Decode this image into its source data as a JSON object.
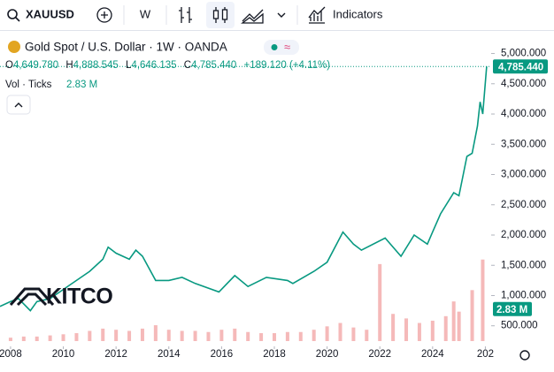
{
  "toolbar": {
    "symbol": "XAUUSD",
    "interval": "W",
    "indicators": "Indicators"
  },
  "legend": {
    "title": "Gold Spot / U.S. Dollar · 1W · OANDA",
    "open_key": "O",
    "open": "4,649.780",
    "high_key": "H",
    "high": "4,888.545",
    "low_key": "L",
    "low": "4,646.135",
    "close_key": "C",
    "close": "4,785.440",
    "change": "+189.120 (+4.11%)",
    "volume_title": "Vol · Ticks",
    "volume": "2.83 M"
  },
  "logo": "KITCO",
  "chart_data": {
    "type": "line",
    "color": "#089981",
    "x": [
      2007.6,
      2008.0,
      2008.3,
      2008.75,
      2009.0,
      2009.5,
      2010.0,
      2010.5,
      2011.0,
      2011.5,
      2011.7,
      2012.0,
      2012.5,
      2012.75,
      2013.0,
      2013.5,
      2014.0,
      2014.5,
      2015.0,
      2015.9,
      2016.5,
      2017.0,
      2017.7,
      2018.5,
      2018.7,
      2019.5,
      2020.0,
      2020.6,
      2021.0,
      2021.3,
      2022.2,
      2022.8,
      2023.3,
      2023.8,
      2024.0,
      2024.3,
      2024.8,
      2025.0,
      2025.3,
      2025.5,
      2025.7,
      2025.8,
      2025.9,
      2026.05
    ],
    "values": [
      820,
      900,
      950,
      750,
      900,
      950,
      1100,
      1250,
      1400,
      1600,
      1800,
      1700,
      1600,
      1750,
      1650,
      1250,
      1250,
      1300,
      1200,
      1060,
      1330,
      1150,
      1300,
      1250,
      1200,
      1400,
      1550,
      2050,
      1850,
      1750,
      1950,
      1650,
      2000,
      1850,
      2050,
      2350,
      2700,
      2650,
      3300,
      3350,
      3800,
      4200,
      4000,
      4785.44
    ],
    "last_price": {
      "value": 4785.44,
      "label": "4,785.440"
    },
    "xlim": [
      2007.6,
      2026.22
    ],
    "xticks": [
      2008,
      2010,
      2012,
      2014,
      2016,
      2018,
      2020,
      2022,
      2024,
      {
        "value": 2026,
        "label": "202"
      }
    ],
    "ylim": [
      160,
      5300
    ],
    "yticks": [
      {
        "value": 500,
        "label": "500.000"
      },
      {
        "value": 1000,
        "label": "1,000.000"
      },
      {
        "value": 1500,
        "label": "1,500.000"
      },
      {
        "value": 2000,
        "label": "2,000.000"
      },
      {
        "value": 2500,
        "label": "2,500.000"
      },
      {
        "value": 3000,
        "label": "3,000.000"
      },
      {
        "value": 3500,
        "label": "3,500.000"
      },
      {
        "value": 4000,
        "label": "4,000.000"
      },
      {
        "value": 4500,
        "label": "4,500.000"
      },
      {
        "value": 5000,
        "label": "5,000.000"
      }
    ],
    "volume": {
      "color": "#f2a7a7",
      "x": [
        2008.0,
        2008.5,
        2009.0,
        2009.5,
        2010.0,
        2010.5,
        2011.0,
        2011.5,
        2012.0,
        2012.5,
        2013.0,
        2013.5,
        2014.0,
        2014.5,
        2015.0,
        2015.5,
        2016.0,
        2016.5,
        2017.0,
        2017.5,
        2018.0,
        2018.5,
        2019.0,
        2019.5,
        2020.0,
        2020.5,
        2021.0,
        2021.5,
        2022.0,
        2022.5,
        2023.0,
        2023.5,
        2024.0,
        2024.5,
        2024.8,
        2025.0,
        2025.5,
        2025.9
      ],
      "values": [
        0.3,
        0.4,
        0.4,
        0.5,
        0.6,
        0.7,
        0.9,
        1.1,
        1.0,
        0.9,
        1.1,
        1.4,
        1.0,
        0.9,
        0.9,
        0.8,
        1.0,
        1.1,
        0.8,
        0.7,
        0.7,
        0.8,
        0.8,
        1.0,
        1.3,
        1.6,
        1.2,
        1.0,
        6.8,
        2.4,
        2.0,
        1.6,
        1.8,
        2.2,
        3.5,
        2.6,
        4.5,
        7.2
      ],
      "ylim": [
        0,
        27
      ],
      "last": {
        "value": 2.83,
        "label": "2.83 M"
      }
    }
  }
}
